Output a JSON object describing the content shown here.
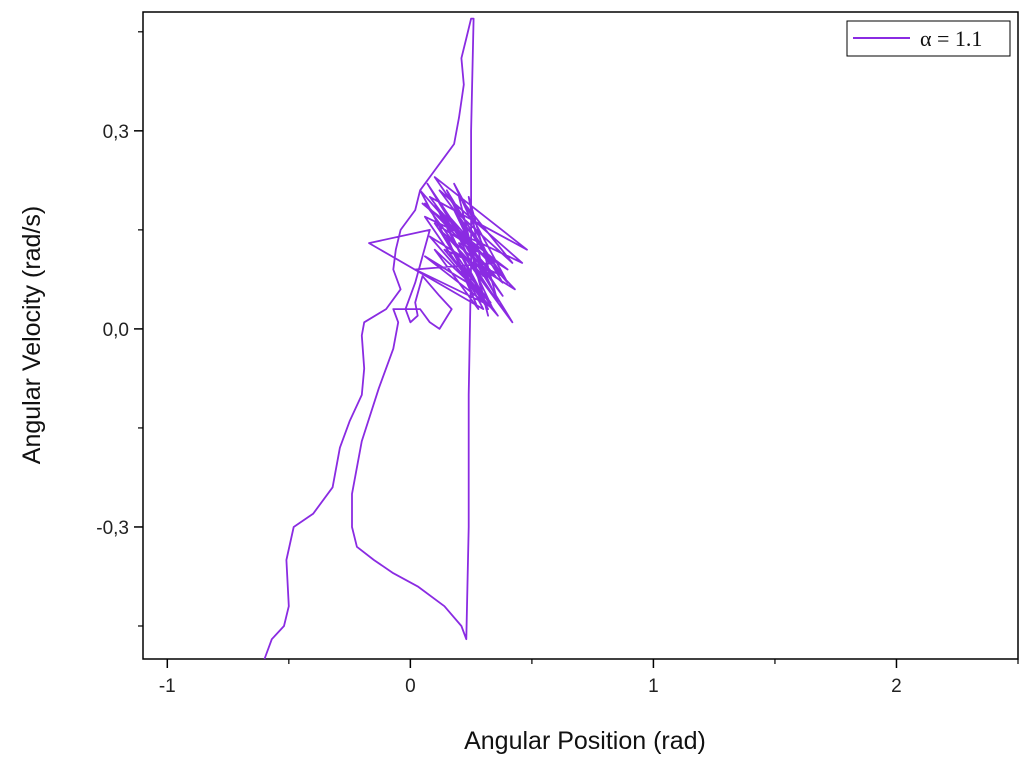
{
  "chart_data": {
    "type": "line",
    "xlabel": "Angular Position (rad)",
    "ylabel": "Angular  Velocity (rad/s)",
    "xlim": [
      -1.1,
      2.5
    ],
    "ylim": [
      -0.5,
      0.48
    ],
    "x_ticks": [
      -1,
      0,
      1,
      2
    ],
    "x_tick_labels": [
      "-1",
      "0",
      "1",
      "2"
    ],
    "y_ticks": [
      -0.3,
      0.0,
      0.3
    ],
    "y_tick_labels": [
      "-0,3",
      "0,0",
      "0,3"
    ],
    "legend": {
      "position": "top-right"
    },
    "grid": false,
    "series": [
      {
        "name": "α = 1.1",
        "color": "#8a2be2",
        "x": [
          -0.6,
          -0.57,
          -0.52,
          -0.5,
          -0.51,
          -0.48,
          -0.4,
          -0.32,
          -0.29,
          -0.25,
          -0.2,
          -0.19,
          -0.2,
          -0.19,
          -0.1,
          -0.04,
          -0.07,
          -0.06,
          -0.04,
          0.02,
          0.04,
          0.1,
          0.14,
          0.18,
          0.2,
          0.22,
          0.21,
          0.23,
          0.25,
          0.26,
          0.25,
          0.25,
          0.24,
          0.24,
          0.23,
          0.21,
          0.14,
          0.03,
          -0.07,
          -0.15,
          -0.22,
          -0.24,
          -0.24,
          -0.2,
          -0.13,
          -0.07,
          -0.05,
          -0.07,
          -0.05,
          0.0,
          0.04,
          0.08,
          0.12,
          0.17,
          0.12,
          0.05,
          0.02,
          0.03,
          0.0,
          -0.02,
          0.02,
          0.08,
          -0.17,
          0.3,
          0.04,
          0.35,
          0.06,
          0.42,
          0.07,
          0.38,
          0.08,
          0.48,
          0.1,
          0.4,
          0.12,
          0.46,
          0.06,
          0.32,
          0.12,
          0.43,
          0.08,
          0.36,
          0.1,
          0.4,
          0.05,
          0.34,
          0.02,
          0.3,
          0.12,
          0.38,
          0.15,
          0.35,
          0.18,
          0.42,
          0.2,
          0.32,
          0.22,
          0.38,
          0.14,
          0.3,
          0.1,
          0.28,
          0.06,
          0.34,
          0.16,
          0.4,
          0.18,
          0.32,
          0.2,
          0.36,
          0.24,
          0.3,
          0.15,
          0.28,
          0.1,
          0.33,
          0.2,
          0.26
        ],
        "y": [
          -0.5,
          -0.47,
          -0.45,
          -0.42,
          -0.35,
          -0.3,
          -0.28,
          -0.24,
          -0.18,
          -0.14,
          -0.1,
          -0.06,
          -0.01,
          0.01,
          0.03,
          0.06,
          0.09,
          0.12,
          0.15,
          0.18,
          0.21,
          0.24,
          0.26,
          0.28,
          0.32,
          0.37,
          0.41,
          0.44,
          0.47,
          0.47,
          0.3,
          0.1,
          -0.1,
          -0.3,
          -0.47,
          -0.45,
          -0.42,
          -0.39,
          -0.37,
          -0.35,
          -0.33,
          -0.3,
          -0.25,
          -0.17,
          -0.09,
          -0.03,
          0.01,
          0.03,
          0.03,
          0.03,
          0.03,
          0.01,
          0.0,
          0.03,
          0.05,
          0.08,
          0.04,
          0.02,
          0.01,
          0.03,
          0.07,
          0.15,
          0.13,
          0.03,
          0.21,
          0.08,
          0.19,
          0.01,
          0.22,
          0.05,
          0.2,
          0.12,
          0.23,
          0.07,
          0.21,
          0.1,
          0.17,
          0.03,
          0.18,
          0.06,
          0.14,
          0.02,
          0.16,
          0.09,
          0.19,
          0.1,
          0.09,
          0.04,
          0.15,
          0.07,
          0.21,
          0.05,
          0.18,
          0.1,
          0.2,
          0.02,
          0.16,
          0.08,
          0.12,
          0.05,
          0.19,
          0.06,
          0.11,
          0.03,
          0.17,
          0.07,
          0.22,
          0.11,
          0.13,
          0.04,
          0.2,
          0.08,
          0.14,
          0.03,
          0.12,
          0.04,
          0.1,
          0.05
        ]
      }
    ]
  }
}
